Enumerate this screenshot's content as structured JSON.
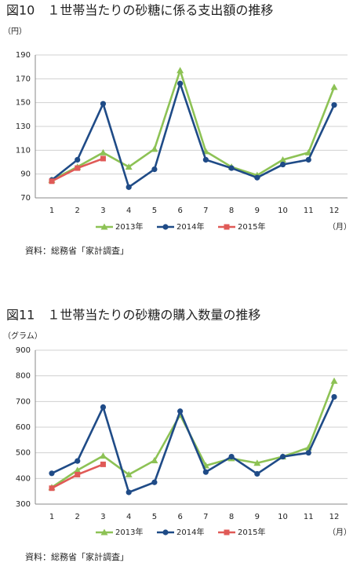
{
  "chart_data": [
    {
      "type": "line",
      "title": "図10　１世帯当たりの砂糖に係る支出額の推移",
      "y_label": "（円）",
      "x_label": "（月）",
      "source": "資料：総務省「家計調査」",
      "categories": [
        "1",
        "2",
        "3",
        "4",
        "5",
        "6",
        "7",
        "8",
        "9",
        "10",
        "11",
        "12"
      ],
      "ylim": [
        70,
        190
      ],
      "yticks": [
        70,
        90,
        110,
        130,
        150,
        170,
        190
      ],
      "grid": true,
      "series": [
        {
          "name": "2013年",
          "color": "#8dc255",
          "marker": "triangle",
          "values": [
            85,
            96,
            108,
            96,
            111,
            177,
            109,
            96,
            89,
            102,
            108,
            163
          ]
        },
        {
          "name": "2014年",
          "color": "#1f4b87",
          "marker": "circle",
          "values": [
            85,
            102,
            149,
            79,
            94,
            166,
            102,
            95,
            87,
            98,
            102,
            148
          ]
        },
        {
          "name": "2015年",
          "color": "#e05a57",
          "marker": "square",
          "values": [
            84,
            95,
            103,
            null,
            null,
            null,
            null,
            null,
            null,
            null,
            null,
            null
          ]
        }
      ]
    },
    {
      "type": "line",
      "title": "図11　１世帯当たりの砂糖の購入数量の推移",
      "y_label": "（グラム）",
      "x_label": "（月）",
      "source": "資料：総務省「家計調査」",
      "categories": [
        "1",
        "2",
        "3",
        "4",
        "5",
        "6",
        "7",
        "8",
        "9",
        "10",
        "11",
        "12"
      ],
      "ylim": [
        300,
        900
      ],
      "yticks": [
        300,
        400,
        500,
        600,
        700,
        800,
        900
      ],
      "grid": true,
      "series": [
        {
          "name": "2013年",
          "color": "#8dc255",
          "marker": "triangle",
          "values": [
            365,
            432,
            488,
            415,
            470,
            648,
            450,
            478,
            460,
            485,
            520,
            780
          ]
        },
        {
          "name": "2014年",
          "color": "#1f4b87",
          "marker": "circle",
          "values": [
            420,
            468,
            678,
            346,
            385,
            662,
            425,
            485,
            418,
            485,
            500,
            718
          ]
        },
        {
          "name": "2015年",
          "color": "#e05a57",
          "marker": "square",
          "values": [
            362,
            415,
            455,
            null,
            null,
            null,
            null,
            null,
            null,
            null,
            null,
            null
          ]
        }
      ]
    }
  ]
}
